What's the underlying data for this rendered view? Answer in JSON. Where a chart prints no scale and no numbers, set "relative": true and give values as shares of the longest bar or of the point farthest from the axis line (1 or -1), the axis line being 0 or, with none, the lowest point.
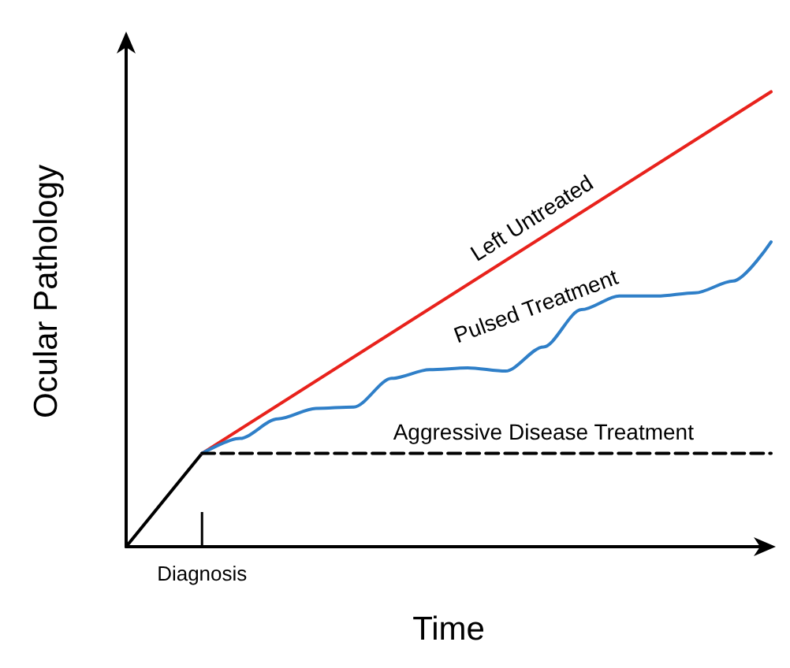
{
  "chart_data": {
    "type": "line",
    "relative": true,
    "xlabel": "Time",
    "ylabel": "Ocular Pathology",
    "marker": "none",
    "annotations": [
      "Diagnosis"
    ],
    "categories": [
      null,
      null,
      null,
      null,
      null,
      null,
      null,
      null,
      null,
      null,
      null,
      null,
      null,
      null,
      null,
      null,
      null,
      null
    ],
    "series": [
      {
        "color": "#000000",
        "values": [
          0,
          null,
          0.205,
          null,
          null,
          null,
          null,
          null,
          null,
          null,
          null,
          null,
          null,
          null,
          null,
          null,
          null,
          null
        ]
      },
      {
        "name": "Left Untreated",
        "color": "#e8221c",
        "values": [
          null,
          null,
          0.205,
          null,
          null,
          null,
          null,
          null,
          null,
          null,
          null,
          null,
          null,
          null,
          null,
          null,
          null,
          1
        ]
      },
      {
        "name": "Pulsed Treatment",
        "color": "#2f7fc8",
        "values": [
          null,
          null,
          0.205,
          0.238,
          0.281,
          0.304,
          0.307,
          0.37,
          0.389,
          0.393,
          0.386,
          0.439,
          0.521,
          0.551,
          0.551,
          0.558,
          0.584,
          0.67
        ]
      },
      {
        "name": "Aggressive Disease Treatment",
        "color": "#000000",
        "line_style": "dashed",
        "values": [
          null,
          null,
          0.205,
          null,
          null,
          null,
          null,
          null,
          null,
          null,
          null,
          null,
          null,
          null,
          null,
          null,
          null,
          0.205
        ]
      }
    ]
  }
}
